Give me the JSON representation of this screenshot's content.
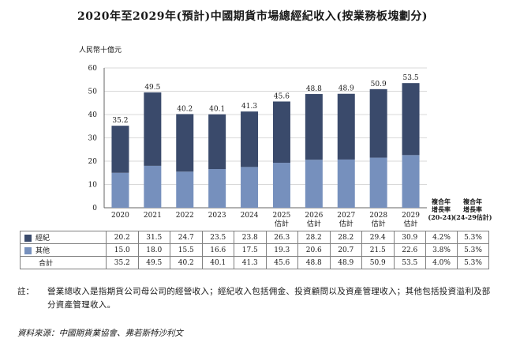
{
  "title": "2020年至2029年(預計)中國期貨市場總經紀收入(按業務板塊劃分)",
  "unit_label": "人民幣十億元",
  "colors": {
    "brokerage": "#3a4a6b",
    "other": "#7690bd",
    "grid": "#d9d9d9",
    "axis": "#666666"
  },
  "chart_data": {
    "type": "bar",
    "stacked": true,
    "title": "2020年至2029年(預計)中國期貨市場總經紀收入(按業務板塊劃分)",
    "ylabel": "人民幣十億元",
    "ylim": [
      0,
      60
    ],
    "yticks": [
      0,
      10,
      20,
      30,
      40,
      50,
      60
    ],
    "grid": true,
    "categories": [
      "2020",
      "2021",
      "2022",
      "2023",
      "2024",
      "2025\n估計",
      "2026\n估計",
      "2027\n估計",
      "2028\n估計",
      "2029\n估計"
    ],
    "category_labels": [
      [
        "2020"
      ],
      [
        "2021"
      ],
      [
        "2022"
      ],
      [
        "2023"
      ],
      [
        "2024"
      ],
      [
        "2025",
        "估計"
      ],
      [
        "2026",
        "估計"
      ],
      [
        "2027",
        "估計"
      ],
      [
        "2028",
        "估計"
      ],
      [
        "2029",
        "估計"
      ]
    ],
    "series": [
      {
        "name": "經紀",
        "values": [
          20.2,
          31.5,
          24.7,
          23.5,
          23.8,
          26.3,
          28.2,
          28.2,
          29.4,
          30.9
        ]
      },
      {
        "name": "其他",
        "values": [
          15.0,
          18.0,
          15.5,
          16.6,
          17.5,
          19.3,
          20.6,
          20.7,
          21.5,
          22.6
        ]
      }
    ],
    "totals": [
      35.2,
      49.5,
      40.2,
      40.1,
      41.3,
      45.6,
      48.8,
      48.9,
      50.9,
      53.5
    ],
    "cagr_headers": [
      [
        "複合年",
        "增長率",
        "(20-24)"
      ],
      [
        "複合年",
        "增長率",
        "(24-29估計)"
      ]
    ]
  },
  "table": {
    "rows": [
      {
        "label": "經紀",
        "values": [
          "20.2",
          "31.5",
          "24.7",
          "23.5",
          "23.8",
          "26.3",
          "28.2",
          "28.2",
          "29.4",
          "30.9"
        ],
        "cagr": [
          "4.2%",
          "5.3%"
        ]
      },
      {
        "label": "其他",
        "values": [
          "15.0",
          "18.0",
          "15.5",
          "16.6",
          "17.5",
          "19.3",
          "20.6",
          "20.7",
          "21.5",
          "22.6"
        ],
        "cagr": [
          "3.8%",
          "5.3%"
        ]
      },
      {
        "label": "合計",
        "values": [
          "35.2",
          "49.5",
          "40.2",
          "40.1",
          "41.3",
          "45.6",
          "48.8",
          "48.9",
          "50.9",
          "53.5"
        ],
        "cagr": [
          "4.0%",
          "5.3%"
        ]
      }
    ]
  },
  "note": {
    "prefix": "註：",
    "text": "營業總收入是指期貨公司母公司的經營收入；經紀收入包括佣金、投資顧問以及資產管理收入；其他包括投資溢利及部分資產管理收入。"
  },
  "source": "資料來源：中國期貨業協會、弗若斯特沙利文"
}
